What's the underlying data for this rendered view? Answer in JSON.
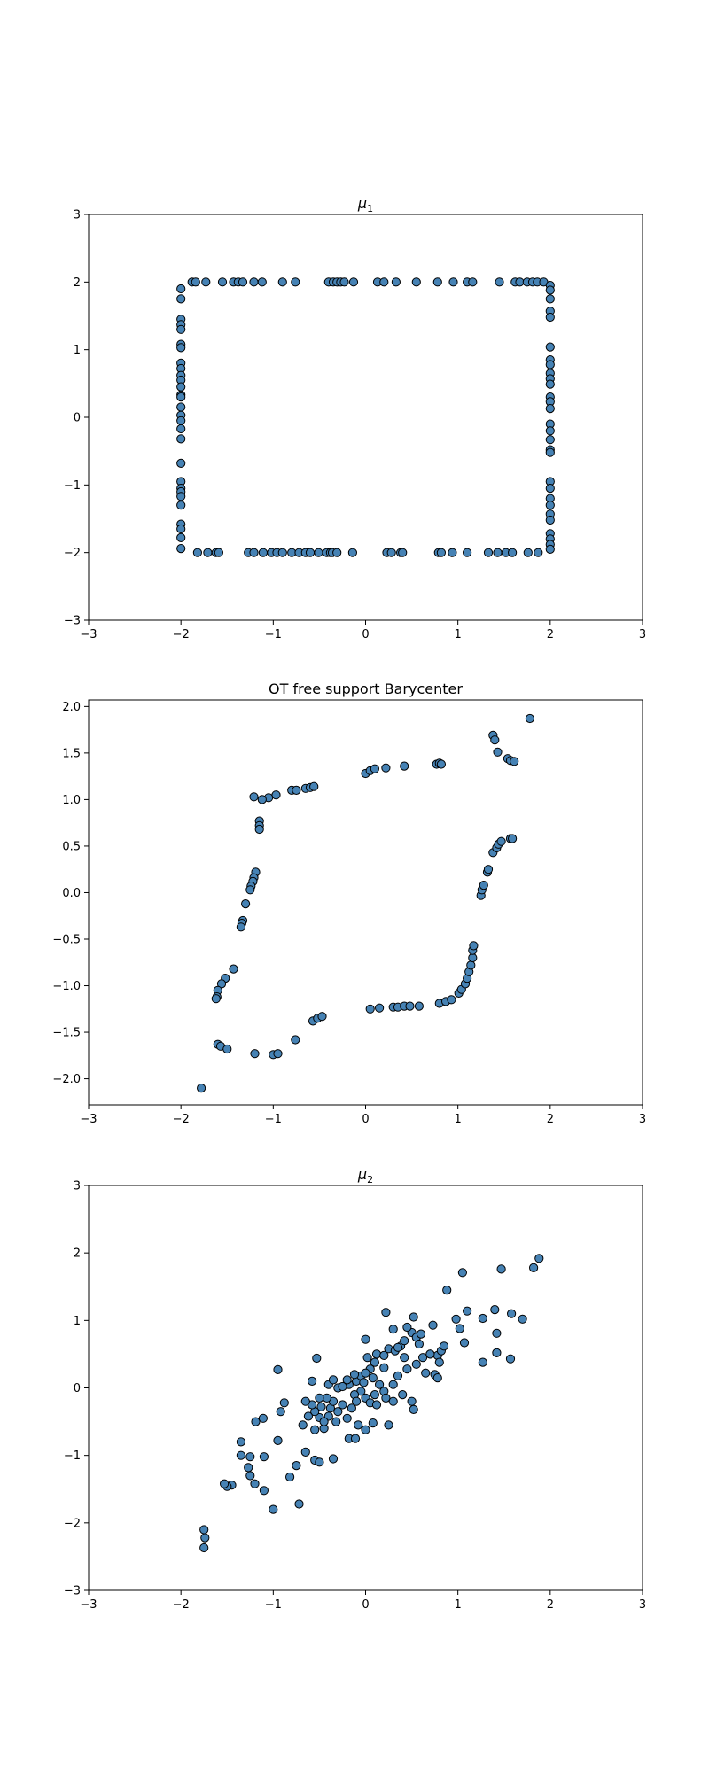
{
  "chart_data": [
    {
      "type": "scatter",
      "title": "μ",
      "title_sub": "1",
      "xlim": [
        -3,
        3
      ],
      "ylim": [
        -3,
        3
      ],
      "xticks": [
        -3,
        -2,
        -1,
        0,
        1,
        2,
        3
      ],
      "yticks": [
        -3,
        -2,
        -1,
        0,
        1,
        2,
        3
      ],
      "marker_color": "#4682b4",
      "points": [
        [
          -1.88,
          2.0
        ],
        [
          -1.84,
          2.0
        ],
        [
          -1.73,
          2.0
        ],
        [
          -1.55,
          2.0
        ],
        [
          -1.43,
          2.0
        ],
        [
          -1.38,
          2.0
        ],
        [
          -1.33,
          2.0
        ],
        [
          -1.21,
          2.0
        ],
        [
          -1.12,
          2.0
        ],
        [
          -0.9,
          2.0
        ],
        [
          -0.76,
          2.0
        ],
        [
          -0.4,
          2.0
        ],
        [
          -0.35,
          2.0
        ],
        [
          -0.31,
          2.0
        ],
        [
          -0.27,
          2.0
        ],
        [
          -0.23,
          2.0
        ],
        [
          -0.13,
          2.0
        ],
        [
          0.13,
          2.0
        ],
        [
          0.2,
          2.0
        ],
        [
          0.33,
          2.0
        ],
        [
          0.55,
          2.0
        ],
        [
          0.78,
          2.0
        ],
        [
          0.95,
          2.0
        ],
        [
          1.1,
          2.0
        ],
        [
          1.16,
          2.0
        ],
        [
          1.45,
          2.0
        ],
        [
          1.62,
          2.0
        ],
        [
          1.67,
          2.0
        ],
        [
          1.75,
          2.0
        ],
        [
          1.81,
          2.0
        ],
        [
          1.86,
          2.0
        ],
        [
          1.93,
          2.0
        ],
        [
          -1.82,
          -2.0
        ],
        [
          -1.71,
          -2.0
        ],
        [
          -1.62,
          -2.0
        ],
        [
          -1.59,
          -2.0
        ],
        [
          -1.27,
          -2.0
        ],
        [
          -1.21,
          -2.0
        ],
        [
          -1.11,
          -2.0
        ],
        [
          -1.02,
          -2.0
        ],
        [
          -0.96,
          -2.0
        ],
        [
          -0.9,
          -2.0
        ],
        [
          -0.8,
          -2.0
        ],
        [
          -0.72,
          -2.0
        ],
        [
          -0.65,
          -2.0
        ],
        [
          -0.6,
          -2.0
        ],
        [
          -0.51,
          -2.0
        ],
        [
          -0.42,
          -2.0
        ],
        [
          -0.38,
          -2.0
        ],
        [
          -0.36,
          -2.0
        ],
        [
          -0.31,
          -2.0
        ],
        [
          -0.14,
          -2.0
        ],
        [
          0.23,
          -2.0
        ],
        [
          0.28,
          -2.0
        ],
        [
          0.38,
          -2.0
        ],
        [
          0.4,
          -2.0
        ],
        [
          0.79,
          -2.0
        ],
        [
          0.82,
          -2.0
        ],
        [
          0.94,
          -2.0
        ],
        [
          1.1,
          -2.0
        ],
        [
          1.33,
          -2.0
        ],
        [
          1.43,
          -2.0
        ],
        [
          1.52,
          -2.0
        ],
        [
          1.59,
          -2.0
        ],
        [
          1.76,
          -2.0
        ],
        [
          1.87,
          -2.0
        ],
        [
          -2.0,
          1.9
        ],
        [
          -2.0,
          1.75
        ],
        [
          -2.0,
          1.45
        ],
        [
          -2.0,
          1.37
        ],
        [
          -2.0,
          1.3
        ],
        [
          -2.0,
          1.08
        ],
        [
          -2.0,
          1.03
        ],
        [
          -2.0,
          0.8
        ],
        [
          -2.0,
          0.72
        ],
        [
          -2.0,
          0.62
        ],
        [
          -2.0,
          0.55
        ],
        [
          -2.0,
          0.45
        ],
        [
          -2.0,
          0.33
        ],
        [
          -2.0,
          0.3
        ],
        [
          -2.0,
          0.15
        ],
        [
          -2.0,
          0.03
        ],
        [
          -2.0,
          -0.05
        ],
        [
          -2.0,
          -0.17
        ],
        [
          -2.0,
          -0.32
        ],
        [
          -2.0,
          -0.68
        ],
        [
          -2.0,
          -0.95
        ],
        [
          -2.0,
          -1.05
        ],
        [
          -2.0,
          -1.1
        ],
        [
          -2.0,
          -1.17
        ],
        [
          -2.0,
          -1.3
        ],
        [
          -2.0,
          -1.58
        ],
        [
          -2.0,
          -1.65
        ],
        [
          -2.0,
          -1.78
        ],
        [
          -2.0,
          -1.94
        ],
        [
          2.0,
          1.95
        ],
        [
          2.0,
          1.88
        ],
        [
          2.0,
          1.75
        ],
        [
          2.0,
          1.57
        ],
        [
          2.0,
          1.48
        ],
        [
          2.0,
          1.04
        ],
        [
          2.0,
          0.85
        ],
        [
          2.0,
          0.78
        ],
        [
          2.0,
          0.65
        ],
        [
          2.0,
          0.57
        ],
        [
          2.0,
          0.49
        ],
        [
          2.0,
          0.3
        ],
        [
          2.0,
          0.23
        ],
        [
          2.0,
          0.13
        ],
        [
          2.0,
          -0.1
        ],
        [
          2.0,
          -0.2
        ],
        [
          2.0,
          -0.33
        ],
        [
          2.0,
          -0.48
        ],
        [
          2.0,
          -0.52
        ],
        [
          2.0,
          -0.95
        ],
        [
          2.0,
          -1.05
        ],
        [
          2.0,
          -1.2
        ],
        [
          2.0,
          -1.3
        ],
        [
          2.0,
          -1.43
        ],
        [
          2.0,
          -1.52
        ],
        [
          2.0,
          -1.72
        ],
        [
          2.0,
          -1.8
        ],
        [
          2.0,
          -1.88
        ],
        [
          2.0,
          -1.95
        ]
      ]
    },
    {
      "type": "scatter",
      "title": "OT free support Barycenter",
      "title_sub": "",
      "xlim": [
        -3,
        3
      ],
      "ylim": [
        -2.28,
        2.07
      ],
      "xticks": [
        -3,
        -2,
        -1,
        0,
        1,
        2,
        3
      ],
      "yticks": [
        -2.0,
        -1.5,
        -1.0,
        -0.5,
        0.0,
        0.5,
        1.0,
        1.5,
        2.0
      ],
      "ytick_labels": [
        "−2.0",
        "−1.5",
        "−1.0",
        "−0.5",
        "0.0",
        "0.5",
        "1.0",
        "1.5",
        "2.0"
      ],
      "marker_color": "#4682b4",
      "points": [
        [
          1.78,
          1.87
        ],
        [
          1.38,
          1.69
        ],
        [
          1.4,
          1.64
        ],
        [
          1.43,
          1.51
        ],
        [
          1.54,
          1.44
        ],
        [
          1.57,
          1.42
        ],
        [
          1.61,
          1.41
        ],
        [
          0.0,
          1.28
        ],
        [
          0.05,
          1.31
        ],
        [
          0.1,
          1.33
        ],
        [
          0.22,
          1.34
        ],
        [
          0.42,
          1.36
        ],
        [
          0.77,
          1.38
        ],
        [
          0.8,
          1.39
        ],
        [
          0.82,
          1.38
        ],
        [
          -0.8,
          1.1
        ],
        [
          -0.75,
          1.1
        ],
        [
          -0.65,
          1.12
        ],
        [
          -0.6,
          1.13
        ],
        [
          -0.56,
          1.14
        ],
        [
          -0.97,
          1.05
        ],
        [
          -1.05,
          1.02
        ],
        [
          -1.12,
          1.0
        ],
        [
          -1.21,
          1.03
        ],
        [
          -1.15,
          0.77
        ],
        [
          -1.15,
          0.72
        ],
        [
          -1.15,
          0.68
        ],
        [
          -1.19,
          0.22
        ],
        [
          -1.21,
          0.16
        ],
        [
          -1.22,
          0.12
        ],
        [
          -1.24,
          0.07
        ],
        [
          -1.25,
          0.03
        ],
        [
          -1.3,
          -0.12
        ],
        [
          -1.33,
          -0.3
        ],
        [
          -1.34,
          -0.33
        ],
        [
          -1.35,
          -0.37
        ],
        [
          -1.43,
          -0.82
        ],
        [
          -1.52,
          -0.92
        ],
        [
          -1.56,
          -0.98
        ],
        [
          -1.6,
          -1.05
        ],
        [
          -1.61,
          -1.12
        ],
        [
          -1.62,
          -1.14
        ],
        [
          -1.6,
          -1.63
        ],
        [
          -1.57,
          -1.65
        ],
        [
          -1.5,
          -1.68
        ],
        [
          -1.2,
          -1.73
        ],
        [
          -1.0,
          -1.74
        ],
        [
          -0.95,
          -1.73
        ],
        [
          -0.76,
          -1.58
        ],
        [
          -1.78,
          -2.1
        ],
        [
          -0.57,
          -1.38
        ],
        [
          -0.52,
          -1.35
        ],
        [
          -0.47,
          -1.33
        ],
        [
          0.05,
          -1.25
        ],
        [
          0.15,
          -1.24
        ],
        [
          0.3,
          -1.23
        ],
        [
          0.35,
          -1.23
        ],
        [
          0.42,
          -1.22
        ],
        [
          0.48,
          -1.22
        ],
        [
          0.58,
          -1.22
        ],
        [
          0.8,
          -1.19
        ],
        [
          0.87,
          -1.17
        ],
        [
          0.93,
          -1.15
        ],
        [
          1.01,
          -1.08
        ],
        [
          1.04,
          -1.04
        ],
        [
          1.08,
          -0.98
        ],
        [
          1.1,
          -0.92
        ],
        [
          1.12,
          -0.85
        ],
        [
          1.14,
          -0.78
        ],
        [
          1.16,
          -0.7
        ],
        [
          1.16,
          -0.62
        ],
        [
          1.17,
          -0.57
        ],
        [
          1.25,
          -0.03
        ],
        [
          1.26,
          0.03
        ],
        [
          1.28,
          0.08
        ],
        [
          1.32,
          0.22
        ],
        [
          1.33,
          0.25
        ],
        [
          1.38,
          0.43
        ],
        [
          1.42,
          0.48
        ],
        [
          1.44,
          0.52
        ],
        [
          1.47,
          0.55
        ],
        [
          1.57,
          0.58
        ],
        [
          1.59,
          0.58
        ]
      ]
    },
    {
      "type": "scatter",
      "title": "μ",
      "title_sub": "2",
      "xlim": [
        -3,
        3
      ],
      "ylim": [
        -3,
        3
      ],
      "xticks": [
        -3,
        -2,
        -1,
        0,
        1,
        2,
        3
      ],
      "yticks": [
        -3,
        -2,
        -1,
        0,
        1,
        2,
        3
      ],
      "marker_color": "#4682b4",
      "points": [
        [
          1.88,
          1.92
        ],
        [
          1.82,
          1.78
        ],
        [
          1.47,
          1.76
        ],
        [
          1.05,
          1.71
        ],
        [
          0.88,
          1.45
        ],
        [
          0.22,
          1.12
        ],
        [
          1.1,
          1.14
        ],
        [
          1.4,
          1.16
        ],
        [
          1.58,
          1.1
        ],
        [
          1.7,
          1.02
        ],
        [
          0.52,
          1.05
        ],
        [
          0.98,
          1.02
        ],
        [
          1.27,
          1.03
        ],
        [
          1.02,
          0.88
        ],
        [
          1.42,
          0.81
        ],
        [
          1.07,
          0.67
        ],
        [
          1.27,
          0.38
        ],
        [
          1.42,
          0.52
        ],
        [
          1.57,
          0.43
        ],
        [
          0.73,
          0.93
        ],
        [
          0.3,
          0.87
        ],
        [
          0.0,
          0.72
        ],
        [
          -0.53,
          0.44
        ],
        [
          -0.95,
          0.27
        ],
        [
          -0.88,
          -0.22
        ],
        [
          -1.11,
          -0.45
        ],
        [
          -1.19,
          -0.5
        ],
        [
          -0.92,
          -0.35
        ],
        [
          -0.68,
          -0.55
        ],
        [
          -0.5,
          -0.44
        ],
        [
          -0.32,
          -0.5
        ],
        [
          -0.2,
          -0.45
        ],
        [
          -0.08,
          -0.55
        ],
        [
          0.08,
          -0.52
        ],
        [
          0.25,
          -0.55
        ],
        [
          0.0,
          -0.62
        ],
        [
          -0.18,
          -0.75
        ],
        [
          -0.11,
          -0.75
        ],
        [
          -0.55,
          -0.62
        ],
        [
          -0.45,
          -0.6
        ],
        [
          -0.65,
          -0.95
        ],
        [
          -0.55,
          -1.07
        ],
        [
          -0.5,
          -1.1
        ],
        [
          -0.35,
          -1.05
        ],
        [
          -0.75,
          -1.15
        ],
        [
          -0.82,
          -1.32
        ],
        [
          -0.72,
          -1.72
        ],
        [
          -1.0,
          -1.8
        ],
        [
          -1.1,
          -1.52
        ],
        [
          -1.2,
          -1.42
        ],
        [
          -1.25,
          -1.3
        ],
        [
          -1.27,
          -1.18
        ],
        [
          -1.45,
          -1.44
        ],
        [
          -1.5,
          -1.46
        ],
        [
          -1.53,
          -1.42
        ],
        [
          -1.35,
          -1.0
        ],
        [
          -1.25,
          -1.02
        ],
        [
          -1.1,
          -1.02
        ],
        [
          -1.35,
          -0.8
        ],
        [
          -0.95,
          -0.78
        ],
        [
          -1.75,
          -2.1
        ],
        [
          -1.74,
          -2.22
        ],
        [
          -1.75,
          -2.37
        ],
        [
          -0.38,
          -0.3
        ],
        [
          -0.35,
          -0.2
        ],
        [
          -0.42,
          -0.15
        ],
        [
          -0.48,
          -0.28
        ],
        [
          -0.55,
          -0.35
        ],
        [
          -0.62,
          -0.42
        ],
        [
          -0.3,
          0.0
        ],
        [
          -0.18,
          0.05
        ],
        [
          -0.1,
          0.1
        ],
        [
          -0.05,
          0.18
        ],
        [
          0.05,
          0.28
        ],
        [
          0.1,
          0.38
        ],
        [
          0.02,
          0.45
        ],
        [
          0.12,
          0.5
        ],
        [
          0.2,
          0.48
        ],
        [
          0.25,
          0.58
        ],
        [
          0.32,
          0.55
        ],
        [
          0.38,
          0.62
        ],
        [
          0.42,
          0.7
        ],
        [
          0.5,
          0.82
        ],
        [
          0.55,
          0.75
        ],
        [
          0.58,
          0.65
        ],
        [
          0.45,
          0.9
        ],
        [
          0.35,
          0.6
        ],
        [
          -0.25,
          0.02
        ],
        [
          -0.2,
          0.12
        ],
        [
          -0.12,
          0.2
        ],
        [
          0.0,
          0.22
        ],
        [
          0.08,
          0.15
        ],
        [
          0.15,
          0.05
        ],
        [
          0.2,
          -0.05
        ],
        [
          0.3,
          0.05
        ],
        [
          0.35,
          0.18
        ],
        [
          0.45,
          0.28
        ],
        [
          0.55,
          0.35
        ],
        [
          0.62,
          0.45
        ],
        [
          0.7,
          0.5
        ],
        [
          0.78,
          0.48
        ],
        [
          0.82,
          0.55
        ],
        [
          0.85,
          0.62
        ],
        [
          0.8,
          0.38
        ],
        [
          0.75,
          0.2
        ],
        [
          0.65,
          0.22
        ],
        [
          0.78,
          0.15
        ],
        [
          -0.05,
          -0.05
        ],
        [
          -0.12,
          -0.1
        ],
        [
          0.0,
          -0.15
        ],
        [
          0.05,
          -0.22
        ],
        [
          -0.1,
          -0.2
        ],
        [
          -0.15,
          -0.3
        ],
        [
          -0.25,
          -0.25
        ],
        [
          -0.3,
          -0.35
        ],
        [
          -0.4,
          -0.42
        ],
        [
          -0.45,
          -0.5
        ],
        [
          -0.58,
          -0.25
        ],
        [
          -0.65,
          -0.2
        ],
        [
          -0.5,
          -0.15
        ],
        [
          -0.4,
          0.05
        ],
        [
          -0.35,
          0.12
        ],
        [
          -0.58,
          0.1
        ],
        [
          0.1,
          -0.1
        ],
        [
          0.22,
          -0.15
        ],
        [
          0.3,
          -0.2
        ],
        [
          0.4,
          -0.1
        ],
        [
          0.5,
          -0.2
        ],
        [
          0.52,
          -0.32
        ],
        [
          0.42,
          0.45
        ],
        [
          0.6,
          0.8
        ],
        [
          0.7,
          0.5
        ],
        [
          0.2,
          0.3
        ],
        [
          0.12,
          -0.25
        ],
        [
          -0.02,
          0.08
        ]
      ]
    }
  ]
}
